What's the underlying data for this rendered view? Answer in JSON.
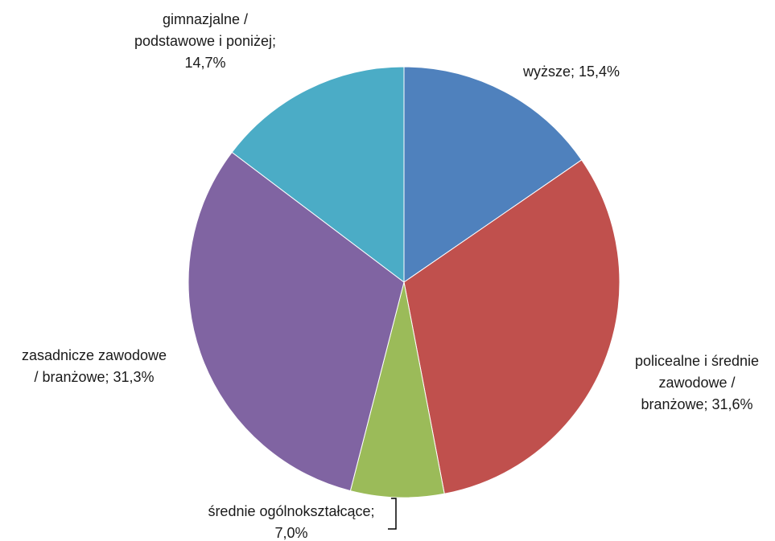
{
  "chart_data": {
    "type": "pie",
    "title": "",
    "start": "12 o'clock",
    "direction": "clockwise",
    "slices": [
      {
        "label": "wyższe",
        "value": 15.4,
        "display": "15,4%",
        "color": "#4f81bd"
      },
      {
        "label": "policealne i średnie zawodowe / branżowe",
        "value": 31.6,
        "display": "31,6%",
        "color": "#c0504d"
      },
      {
        "label": "średnie ogólnokształcące",
        "value": 7.0,
        "display": "7,0%",
        "color": "#9bbb59"
      },
      {
        "label": "zasadnicze zawodowe / branżowe",
        "value": 31.3,
        "display": "31,3%",
        "color": "#8064a2"
      },
      {
        "label": "gimnazjalne / podstawowe i poniżej",
        "value": 14.7,
        "display": "14,7%",
        "color": "#4bacc6"
      }
    ],
    "label_lines": [
      [
        "wyższe; 15,4%"
      ],
      [
        "policealne i średnie",
        "zawodowe /",
        "branżowe; 31,6%"
      ],
      [
        "średnie ogólnokształcące;",
        "7,0%"
      ],
      [
        "zasadnicze zawodowe",
        "/ branżowe; 31,3%"
      ],
      [
        "gimnazjalne /",
        "podstawowe i poniżej;",
        "14,7%"
      ]
    ],
    "legend": "none"
  }
}
